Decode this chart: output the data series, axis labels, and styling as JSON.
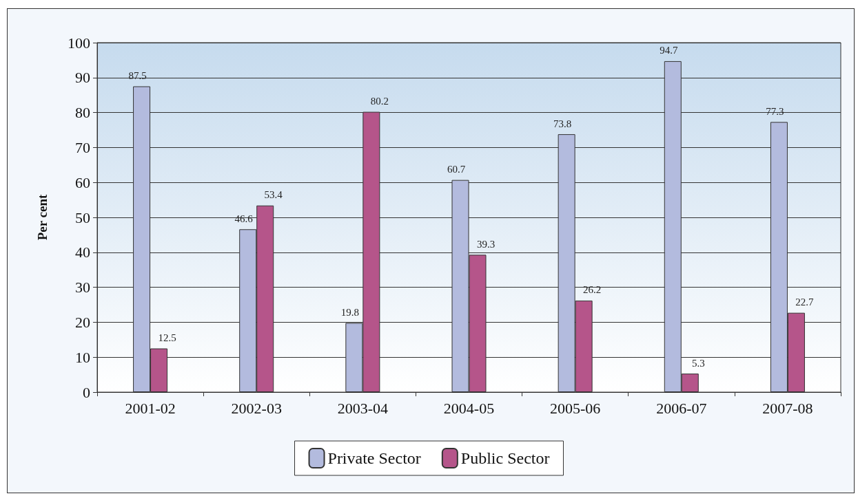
{
  "chart_data": {
    "type": "bar",
    "ylabel": "Per cent",
    "categories": [
      "2001-02",
      "2002-03",
      "2003-04",
      "2004-05",
      "2005-06",
      "2006-07",
      "2007-08"
    ],
    "series": [
      {
        "name": "Private Sector",
        "color": "#b3bbde",
        "values": [
          87.5,
          46.6,
          19.8,
          60.7,
          73.8,
          94.7,
          77.3
        ]
      },
      {
        "name": "Public Sector",
        "color": "#b5558a",
        "values": [
          12.5,
          53.4,
          80.2,
          39.3,
          26.2,
          5.3,
          22.7
        ]
      }
    ],
    "ylim": [
      0,
      100
    ],
    "yticks": [
      0,
      10,
      20,
      30,
      40,
      50,
      60,
      70,
      80,
      90,
      100
    ],
    "grid": "y",
    "legend": "bottom",
    "data_labels": true
  }
}
